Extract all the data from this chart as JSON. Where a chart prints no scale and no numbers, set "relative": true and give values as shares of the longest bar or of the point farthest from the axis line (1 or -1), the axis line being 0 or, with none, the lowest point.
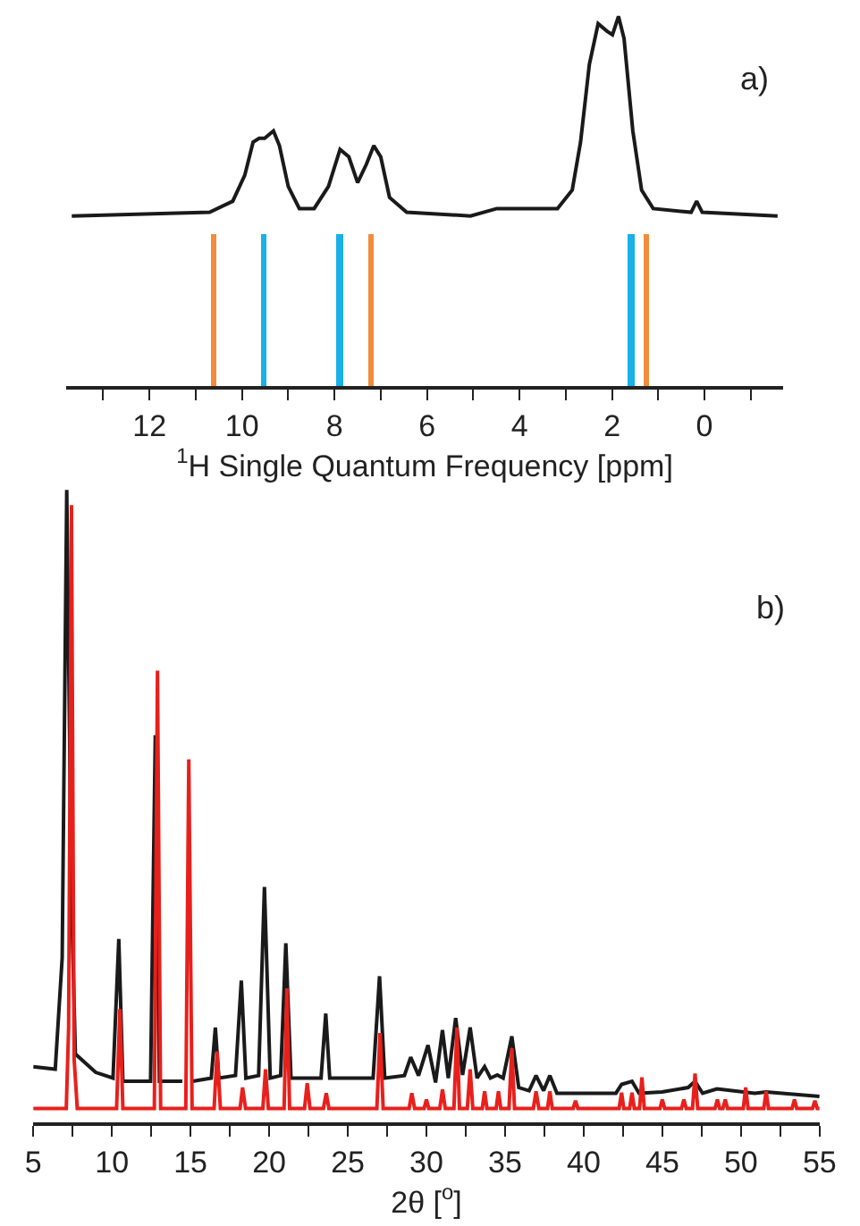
{
  "chart_data": [
    {
      "type": "line",
      "relative": true,
      "xlim": [
        13.8,
        -1.7
      ],
      "xticks": [
        {
          "value": 13,
          "label": null
        },
        12,
        {
          "value": 11,
          "label": null
        },
        10,
        {
          "value": 9,
          "label": null
        },
        8,
        {
          "value": 7,
          "label": null
        },
        6,
        {
          "value": 5,
          "label": null
        },
        4,
        {
          "value": 3,
          "label": null
        },
        2,
        {
          "value": 1,
          "label": null
        },
        0,
        {
          "value": -1,
          "label": null
        }
      ],
      "xlabel": "$^{1}$H Single Quantum Frequency [ppm]",
      "tick_labels": "x",
      "annotations": [
        "a)"
      ],
      "series": [
        {
          "color": "#1a1a1a",
          "x": [
            13.68,
            10.7,
            10.2,
            9.94,
            9.76,
            9.63,
            9.51,
            9.32,
            9.19,
            9.0,
            8.76,
            8.44,
            8.13,
            7.88,
            7.69,
            7.5,
            7.31,
            7.15,
            7.0,
            6.81,
            6.44,
            5.06,
            4.49,
            4.18,
            3.18,
            2.86,
            2.68,
            2.49,
            2.3,
            2.11,
            1.99,
            1.86,
            1.74,
            1.55,
            1.36,
            1.11,
            0.29,
            0.17,
            0.05,
            -1.58
          ],
          "values": [
            0.46,
            0.47,
            0.5,
            0.57,
            0.66,
            0.67,
            0.67,
            0.69,
            0.65,
            0.54,
            0.48,
            0.48,
            0.54,
            0.64,
            0.62,
            0.55,
            0.6,
            0.65,
            0.62,
            0.51,
            0.47,
            0.46,
            0.48,
            0.48,
            0.48,
            0.53,
            0.66,
            0.87,
            0.98,
            0.96,
            0.95,
            1.0,
            0.94,
            0.69,
            0.53,
            0.48,
            0.47,
            0.5,
            0.47,
            0.46
          ]
        },
        {
          "type": "bar",
          "colors": [
            "#f28c3c",
            "#1ab0e8",
            "#1ab0e8",
            "#f28c3c",
            "#1ab0e8",
            "#f28c3c"
          ],
          "x": [
            10.6,
            9.53,
            7.88,
            7.2,
            1.59,
            1.26
          ],
          "values": [
            0.41,
            0.41,
            0.41,
            0.41,
            0.41,
            0.41
          ]
        }
      ]
    },
    {
      "type": "line",
      "relative": true,
      "xlim": [
        5,
        55
      ],
      "xticks": [
        5,
        {
          "value": 7.5,
          "label": null
        },
        10,
        {
          "value": 12.5,
          "label": null
        },
        15,
        {
          "value": 17.5,
          "label": null
        },
        20,
        {
          "value": 22.5,
          "label": null
        },
        25,
        {
          "value": 27.5,
          "label": null
        },
        30,
        {
          "value": 32.5,
          "label": null
        },
        35,
        {
          "value": 37.5,
          "label": null
        },
        40,
        {
          "value": 42.5,
          "label": null
        },
        45,
        {
          "value": 47.5,
          "label": null
        },
        50,
        {
          "value": 52.5,
          "label": null
        },
        55
      ],
      "xlabel": "2θ [$^{o}$]",
      "tick_labels": "x",
      "annotations": [
        "b)"
      ],
      "series": [
        {
          "color": "#1a1a1a",
          "x": [
            5.0,
            6.4,
            6.84,
            7.13,
            7.43,
            7.68,
            8.97,
            10.07,
            10.44,
            10.7,
            12.46,
            12.76,
            13.02,
            14.48,
            14.85,
            15.14,
            16.32,
            16.58,
            16.8,
            17.86,
            18.23,
            18.52,
            19.33,
            19.7,
            20.07,
            20.73,
            21.06,
            21.39,
            23.3,
            23.6,
            23.85,
            26.61,
            27.02,
            27.35,
            28.6,
            29.0,
            29.5,
            30.1,
            30.58,
            31.02,
            31.39,
            31.86,
            32.3,
            32.78,
            33.22,
            33.7,
            34.07,
            34.51,
            34.88,
            35.43,
            35.87,
            36.53,
            36.97,
            37.45,
            37.85,
            38.3,
            39.48,
            42.05,
            42.41,
            43.07,
            43.52,
            44.98,
            46.64,
            47.08,
            47.56,
            48.47,
            50.87,
            51.6,
            55.0
          ],
          "values": [
            0.088,
            0.084,
            0.26,
            1.0,
            0.355,
            0.108,
            0.079,
            0.07,
            0.29,
            0.065,
            0.065,
            0.612,
            0.065,
            0.065,
            null,
            0.065,
            0.07,
            0.15,
            0.07,
            0.074,
            0.224,
            0.07,
            0.074,
            0.372,
            0.07,
            0.074,
            0.283,
            0.07,
            0.07,
            0.172,
            0.07,
            0.07,
            0.231,
            0.07,
            0.074,
            0.103,
            0.074,
            0.122,
            0.063,
            0.146,
            0.07,
            0.165,
            0.075,
            0.15,
            0.07,
            0.088,
            0.07,
            0.075,
            0.07,
            0.136,
            0.055,
            0.05,
            0.074,
            0.05,
            0.074,
            0.046,
            0.046,
            0.046,
            0.06,
            0.065,
            0.046,
            0.048,
            0.055,
            0.065,
            0.046,
            0.053,
            0.046,
            0.048,
            0.041
          ]
        },
        {
          "color": "#e8201c",
          "x": [
            5.0,
            7.1,
            7.25,
            7.43,
            7.6,
            7.8,
            10.3,
            10.51,
            10.7,
            12.7,
            12.9,
            13.1,
            14.7,
            14.89,
            15.1,
            16.5,
            16.69,
            16.9,
            18.15,
            18.31,
            18.5,
            19.6,
            19.77,
            19.95,
            20.95,
            21.13,
            21.3,
            22.25,
            22.42,
            22.6,
            23.45,
            23.63,
            23.8,
            26.85,
            27.05,
            27.25,
            28.9,
            29.07,
            29.25,
            29.85,
            30.0,
            30.15,
            30.85,
            31.02,
            31.2,
            31.75,
            31.94,
            32.1,
            32.6,
            32.78,
            32.95,
            33.55,
            33.7,
            33.85,
            34.43,
            34.58,
            34.73,
            35.25,
            35.43,
            35.6,
            36.8,
            36.97,
            37.15,
            37.7,
            37.85,
            38.0,
            39.33,
            39.48,
            39.63,
            42.25,
            42.41,
            42.55,
            42.92,
            43.07,
            43.22,
            43.55,
            43.7,
            43.85,
            44.85,
            45.0,
            45.15,
            46.22,
            46.37,
            46.52,
            46.92,
            47.08,
            47.25,
            48.35,
            48.5,
            48.65,
            48.85,
            49.0,
            49.15,
            50.15,
            50.3,
            50.45,
            51.45,
            51.6,
            51.75,
            53.25,
            53.4,
            53.55,
            54.55,
            54.7,
            54.85,
            55.0
          ],
          "values": [
            0.022,
            0.022,
            0.15,
            0.976,
            0.1,
            0.022,
            0.022,
            0.179,
            0.022,
            0.022,
            0.714,
            0.022,
            0.022,
            0.574,
            0.022,
            0.022,
            0.112,
            0.022,
            0.022,
            0.055,
            0.022,
            0.022,
            0.084,
            0.022,
            0.022,
            0.212,
            0.022,
            0.022,
            0.062,
            0.022,
            0.022,
            0.046,
            0.022,
            0.022,
            0.141,
            0.022,
            0.022,
            0.046,
            0.022,
            0.022,
            0.036,
            0.022,
            0.022,
            0.052,
            0.022,
            0.022,
            0.15,
            0.022,
            0.022,
            0.084,
            0.022,
            0.022,
            0.049,
            0.022,
            0.022,
            0.049,
            0.022,
            0.022,
            0.117,
            0.022,
            0.022,
            0.049,
            0.022,
            0.022,
            0.049,
            0.022,
            0.022,
            0.034,
            0.022,
            0.022,
            0.047,
            0.022,
            0.022,
            0.047,
            0.022,
            0.022,
            0.071,
            0.022,
            0.022,
            0.036,
            0.022,
            0.022,
            0.036,
            0.022,
            0.022,
            0.077,
            0.022,
            0.022,
            0.036,
            0.022,
            0.022,
            0.036,
            0.022,
            0.022,
            0.055,
            0.022,
            0.022,
            0.049,
            0.022,
            0.022,
            0.036,
            0.022,
            0.022,
            0.034,
            0.022,
            0.022
          ]
        }
      ]
    }
  ]
}
